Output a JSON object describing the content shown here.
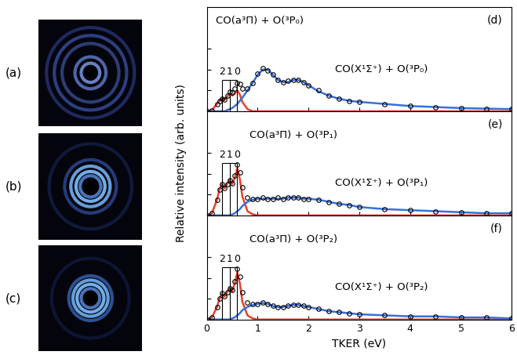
{
  "figure": {
    "ylabel": "Relative intensity (arb. units)",
    "images": [
      {
        "label": "(a)"
      },
      {
        "label": "(b)"
      },
      {
        "label": "(c)"
      }
    ]
  },
  "chart_data": [
    {
      "type": "line",
      "panel_label": "(d)",
      "annotations": [
        "CO(a³Π) + O(³P₀)",
        "CO(X¹Σ⁺) + O(³P₀)"
      ],
      "x": [
        0,
        0.1,
        0.2,
        0.25,
        0.3,
        0.35,
        0.4,
        0.45,
        0.5,
        0.55,
        0.6,
        0.65,
        0.7,
        0.8,
        0.9,
        1.0,
        1.1,
        1.2,
        1.3,
        1.4,
        1.5,
        1.6,
        1.7,
        1.8,
        1.9,
        2.0,
        2.2,
        2.4,
        2.6,
        2.8,
        3.0,
        3.5,
        4.0,
        4.5,
        5.0,
        5.5,
        6.0
      ],
      "series": [
        {
          "color": "#000000",
          "marker": "circle",
          "line_style": "none",
          "values": [
            0.0,
            0.01,
            0.07,
            0.1,
            0.12,
            0.11,
            0.15,
            0.19,
            0.18,
            0.22,
            0.27,
            0.26,
            0.22,
            0.22,
            0.27,
            0.36,
            0.41,
            0.39,
            0.35,
            0.3,
            0.28,
            0.29,
            0.3,
            0.3,
            0.28,
            0.25,
            0.2,
            0.15,
            0.12,
            0.1,
            0.09,
            0.07,
            0.05,
            0.04,
            0.03,
            0.025,
            0.02
          ]
        },
        {
          "color": "#e8412c",
          "marker": "none",
          "line_style": "solid",
          "values": [
            0,
            0.01,
            0.07,
            0.1,
            0.12,
            0.11,
            0.14,
            0.17,
            0.15,
            0.17,
            0.2,
            0.16,
            0.09,
            0.02,
            0,
            0,
            0,
            0,
            0,
            0,
            0,
            0,
            0,
            0,
            0,
            0,
            0,
            0,
            0,
            0,
            0,
            0,
            0,
            0,
            0,
            0,
            0
          ]
        },
        {
          "color": "#3a6fd8",
          "marker": "none",
          "line_style": "solid",
          "values": [
            0,
            0,
            0,
            0,
            0,
            0,
            0.01,
            0.02,
            0.03,
            0.05,
            0.07,
            0.1,
            0.13,
            0.2,
            0.27,
            0.35,
            0.4,
            0.4,
            0.35,
            0.3,
            0.28,
            0.28,
            0.3,
            0.3,
            0.28,
            0.25,
            0.19,
            0.15,
            0.12,
            0.1,
            0.09,
            0.07,
            0.05,
            0.04,
            0.03,
            0.025,
            0.02
          ]
        }
      ],
      "levels": {
        "labels": [
          "2",
          "1",
          "0"
        ],
        "x": [
          0.3,
          0.45,
          0.6
        ],
        "height": 0.3
      },
      "xlim": [
        0,
        6
      ],
      "xticks": [
        0,
        1,
        2,
        3,
        4,
        5,
        6
      ],
      "ylim": [
        0,
        1
      ],
      "yticks": [
        0.2,
        0.4,
        0.6
      ],
      "tick_labels": false
    },
    {
      "type": "line",
      "panel_label": "(e)",
      "annotations": [
        "CO(a³Π) + O(³P₁)",
        "CO(X¹Σ⁺) + O(³P₁)"
      ],
      "x": [
        0,
        0.1,
        0.2,
        0.25,
        0.3,
        0.35,
        0.4,
        0.45,
        0.5,
        0.55,
        0.6,
        0.65,
        0.7,
        0.8,
        0.9,
        1.0,
        1.1,
        1.2,
        1.3,
        1.4,
        1.5,
        1.6,
        1.7,
        1.8,
        1.9,
        2.0,
        2.2,
        2.4,
        2.6,
        2.8,
        3.0,
        3.5,
        4.0,
        4.5,
        5.0,
        5.5,
        6.0
      ],
      "series": [
        {
          "color": "#000000",
          "marker": "circle",
          "line_style": "none",
          "values": [
            0.0,
            0.02,
            0.15,
            0.25,
            0.3,
            0.26,
            0.3,
            0.34,
            0.31,
            0.38,
            0.49,
            0.41,
            0.27,
            0.17,
            0.16,
            0.16,
            0.17,
            0.16,
            0.16,
            0.17,
            0.16,
            0.17,
            0.17,
            0.17,
            0.16,
            0.16,
            0.15,
            0.13,
            0.11,
            0.1,
            0.08,
            0.06,
            0.05,
            0.04,
            0.03,
            0.02,
            0.02
          ]
        },
        {
          "color": "#e8412c",
          "marker": "none",
          "line_style": "solid",
          "values": [
            0,
            0.02,
            0.15,
            0.25,
            0.3,
            0.26,
            0.3,
            0.34,
            0.3,
            0.36,
            0.45,
            0.35,
            0.18,
            0.04,
            0.01,
            0,
            0,
            0,
            0,
            0,
            0,
            0,
            0,
            0,
            0,
            0,
            0,
            0,
            0,
            0,
            0,
            0,
            0,
            0,
            0,
            0,
            0
          ]
        },
        {
          "color": "#3a6fd8",
          "marker": "none",
          "line_style": "solid",
          "values": [
            0,
            0,
            0,
            0,
            0,
            0,
            0,
            0,
            0.01,
            0.02,
            0.04,
            0.06,
            0.09,
            0.13,
            0.15,
            0.16,
            0.16,
            0.16,
            0.16,
            0.16,
            0.16,
            0.17,
            0.17,
            0.17,
            0.16,
            0.16,
            0.15,
            0.13,
            0.11,
            0.1,
            0.08,
            0.06,
            0.05,
            0.04,
            0.03,
            0.02,
            0.02
          ]
        }
      ],
      "levels": {
        "labels": [
          "2",
          "1",
          "0"
        ],
        "x": [
          0.3,
          0.45,
          0.6
        ],
        "height": 0.5
      },
      "xlim": [
        0,
        6
      ],
      "xticks": [
        0,
        1,
        2,
        3,
        4,
        5,
        6
      ],
      "ylim": [
        0,
        1
      ],
      "yticks": [
        0.2,
        0.4,
        0.6
      ],
      "tick_labels": false
    },
    {
      "type": "line",
      "panel_label": "(f)",
      "annotations": [
        "CO(a³Π) + O(³P₂)",
        "CO(X¹Σ⁺) + O(³P₂)"
      ],
      "xlabel": "TKER (eV)",
      "x": [
        0,
        0.1,
        0.2,
        0.25,
        0.3,
        0.35,
        0.4,
        0.45,
        0.5,
        0.55,
        0.6,
        0.65,
        0.7,
        0.8,
        0.9,
        1.0,
        1.1,
        1.2,
        1.3,
        1.4,
        1.5,
        1.6,
        1.7,
        1.8,
        1.9,
        2.0,
        2.2,
        2.4,
        2.6,
        2.8,
        3.0,
        3.5,
        4.0,
        4.5,
        5.0,
        5.5,
        6.0
      ],
      "series": [
        {
          "color": "#000000",
          "marker": "circle",
          "line_style": "none",
          "values": [
            0.0,
            0.02,
            0.12,
            0.2,
            0.25,
            0.22,
            0.26,
            0.3,
            0.28,
            0.37,
            0.49,
            0.41,
            0.26,
            0.16,
            0.15,
            0.15,
            0.16,
            0.15,
            0.13,
            0.12,
            0.12,
            0.13,
            0.14,
            0.14,
            0.13,
            0.12,
            0.1,
            0.08,
            0.07,
            0.06,
            0.05,
            0.04,
            0.03,
            0.03,
            0.02,
            0.02,
            0.01
          ]
        },
        {
          "color": "#e8412c",
          "marker": "none",
          "line_style": "solid",
          "values": [
            0,
            0.02,
            0.12,
            0.2,
            0.25,
            0.22,
            0.26,
            0.3,
            0.27,
            0.35,
            0.45,
            0.35,
            0.17,
            0.04,
            0.01,
            0,
            0,
            0,
            0,
            0,
            0,
            0,
            0,
            0,
            0,
            0,
            0,
            0,
            0,
            0,
            0,
            0,
            0,
            0,
            0,
            0,
            0
          ]
        },
        {
          "color": "#3a6fd8",
          "marker": "none",
          "line_style": "solid",
          "values": [
            0,
            0,
            0,
            0,
            0,
            0,
            0,
            0,
            0.01,
            0.02,
            0.04,
            0.06,
            0.09,
            0.12,
            0.14,
            0.15,
            0.16,
            0.15,
            0.13,
            0.12,
            0.12,
            0.13,
            0.14,
            0.14,
            0.13,
            0.12,
            0.1,
            0.08,
            0.07,
            0.06,
            0.05,
            0.04,
            0.03,
            0.03,
            0.02,
            0.02,
            0.01
          ]
        }
      ],
      "levels": {
        "labels": [
          "2",
          "1",
          "0"
        ],
        "x": [
          0.3,
          0.45,
          0.6
        ],
        "height": 0.5
      },
      "xlim": [
        0,
        6
      ],
      "xticks": [
        0,
        1,
        2,
        3,
        4,
        5,
        6
      ],
      "ylim": [
        0,
        1
      ],
      "yticks": [
        0.2,
        0.4,
        0.6
      ],
      "tick_labels": "x"
    }
  ]
}
